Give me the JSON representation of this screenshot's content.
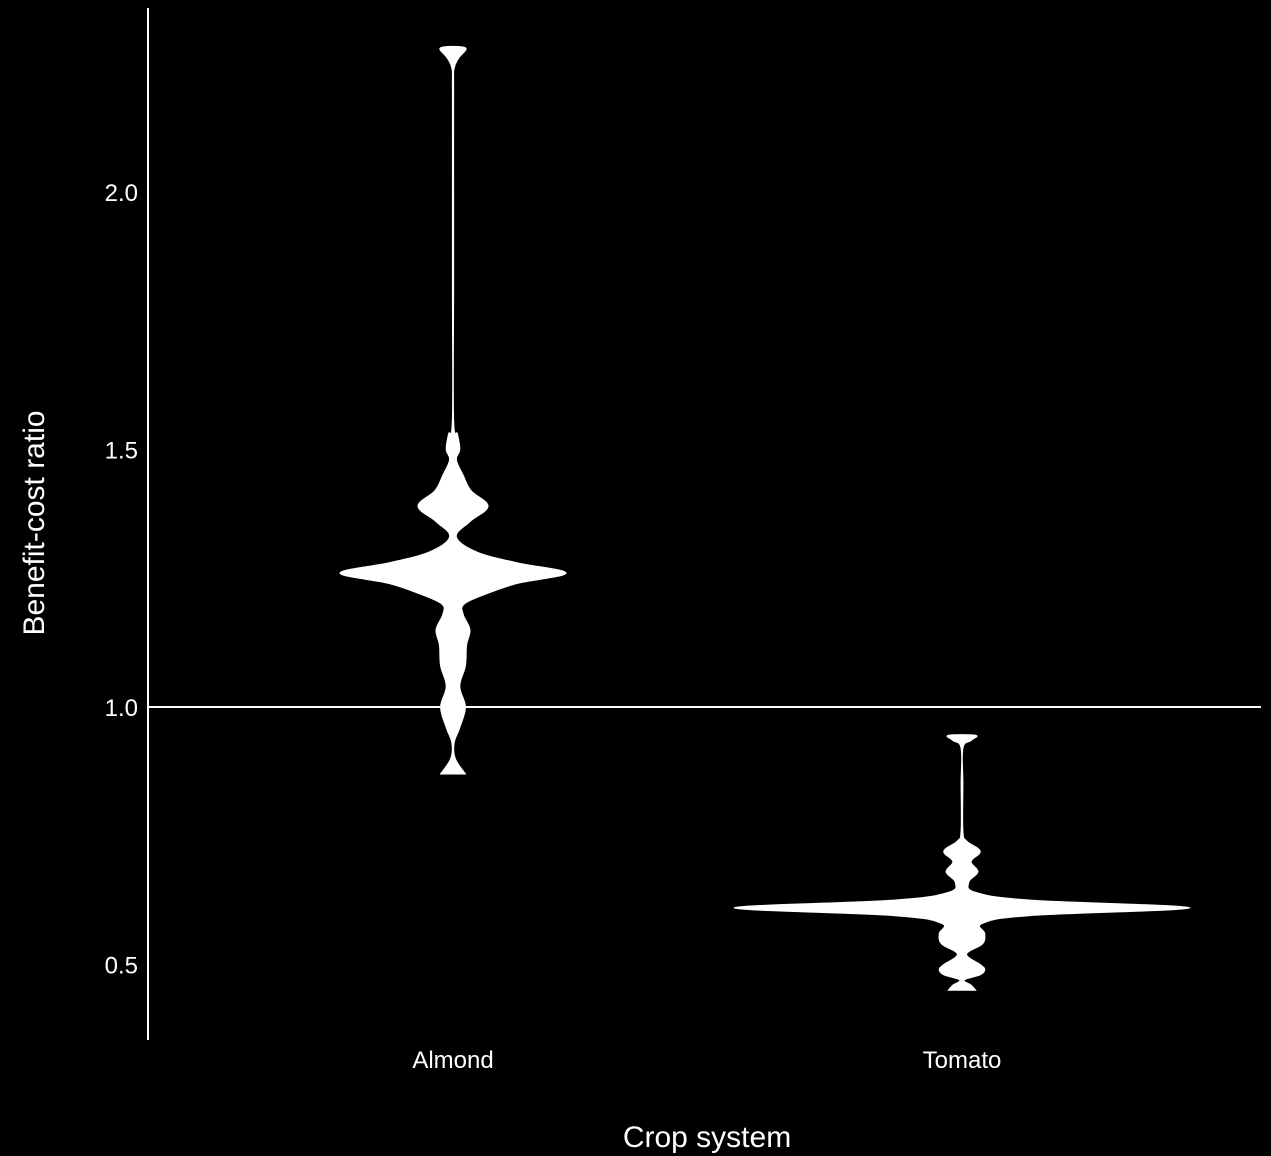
{
  "chart_data": {
    "type": "violin",
    "title": "",
    "xlabel": "Crop system",
    "ylabel": "Benefit-cost ratio",
    "categories": [
      "Almond",
      "Tomato"
    ],
    "ylim": [
      0.36,
      2.37
    ],
    "yticks": [
      0.5,
      1.0,
      1.5,
      2.0
    ],
    "ytick_labels": [
      "0.5",
      "1.0",
      "1.5",
      "2.0"
    ],
    "reference_line": {
      "y": 1.0
    },
    "grid": false,
    "legend": "none",
    "colors": {
      "background": "#000000",
      "fill": "#ffffff",
      "axis": "#ffffff",
      "text": "#ffffff"
    },
    "series": [
      {
        "category": "Almond",
        "min": 0.88,
        "max": 2.28,
        "mode": 1.26,
        "density_profile": [
          [
            0.87,
            0.11
          ],
          [
            0.9,
            0.02
          ],
          [
            0.93,
            0.01
          ],
          [
            0.96,
            0.06
          ],
          [
            1.0,
            0.11
          ],
          [
            1.04,
            0.06
          ],
          [
            1.08,
            0.11
          ],
          [
            1.12,
            0.12
          ],
          [
            1.15,
            0.15
          ],
          [
            1.18,
            0.09
          ],
          [
            1.2,
            0.1
          ],
          [
            1.22,
            0.3
          ],
          [
            1.24,
            0.57
          ],
          [
            1.26,
            1.0
          ],
          [
            1.28,
            0.57
          ],
          [
            1.3,
            0.22
          ],
          [
            1.33,
            0.03
          ],
          [
            1.36,
            0.15
          ],
          [
            1.39,
            0.31
          ],
          [
            1.42,
            0.16
          ],
          [
            1.45,
            0.09
          ],
          [
            1.48,
            0.03
          ],
          [
            1.5,
            0.06
          ],
          [
            1.53,
            0.04
          ],
          [
            1.56,
            0.005
          ],
          [
            1.8,
            0.005
          ],
          [
            2.0,
            0.005
          ],
          [
            2.2,
            0.005
          ],
          [
            2.24,
            0.01
          ],
          [
            2.26,
            0.05
          ],
          [
            2.28,
            0.11
          ]
        ]
      },
      {
        "category": "Tomato",
        "min": 0.45,
        "max": 0.95,
        "mode": 0.61,
        "density_profile": [
          [
            0.45,
            0.06
          ],
          [
            0.46,
            0.04
          ],
          [
            0.47,
            0.01
          ],
          [
            0.48,
            0.08
          ],
          [
            0.49,
            0.1
          ],
          [
            0.5,
            0.08
          ],
          [
            0.52,
            0.02
          ],
          [
            0.54,
            0.09
          ],
          [
            0.56,
            0.1
          ],
          [
            0.58,
            0.09
          ],
          [
            0.595,
            0.3
          ],
          [
            0.61,
            1.0
          ],
          [
            0.625,
            0.3
          ],
          [
            0.64,
            0.06
          ],
          [
            0.66,
            0.03
          ],
          [
            0.68,
            0.07
          ],
          [
            0.7,
            0.04
          ],
          [
            0.72,
            0.08
          ],
          [
            0.74,
            0.02
          ],
          [
            0.76,
            0.004
          ],
          [
            0.85,
            0.004
          ],
          [
            0.92,
            0.004
          ],
          [
            0.935,
            0.04
          ],
          [
            0.945,
            0.06
          ]
        ]
      }
    ]
  }
}
